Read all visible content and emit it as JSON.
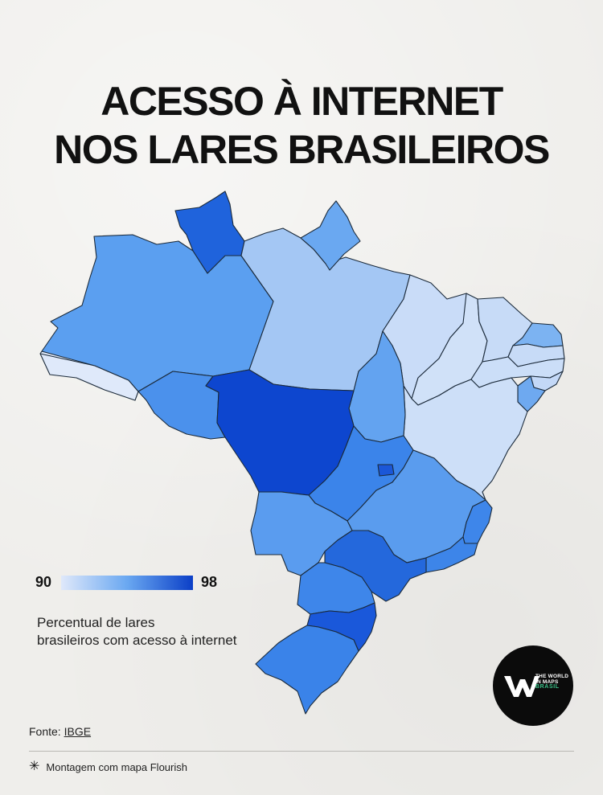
{
  "title": {
    "line1": "ACESSO À INTERNET",
    "line2": "NOS LARES BRASILEIROS"
  },
  "legend": {
    "min": "90",
    "max": "98",
    "color_low": "#dfe8fa",
    "color_high": "#0b3fc7",
    "caption_line1": "Percentual de lares",
    "caption_line2": "brasileiros com acesso à internet"
  },
  "source": {
    "label": "Fonte:",
    "name": "IBGE"
  },
  "footer": {
    "text": "Montagem com mapa Flourish",
    "icon": "asterisk-icon"
  },
  "logo": {
    "line1": "THE WORLD",
    "line2": "IN MAPS",
    "line3": "BRASIL"
  },
  "map": {
    "region": "Brazil",
    "states": {
      "AC": {
        "fill": "#dfe9fa"
      },
      "AM": {
        "fill": "#5b9ff0"
      },
      "RR": {
        "fill": "#1f63dc"
      },
      "PA": {
        "fill": "#a4c7f4"
      },
      "AP": {
        "fill": "#6aa8f1"
      },
      "MA": {
        "fill": "#c9dcf8"
      },
      "PI": {
        "fill": "#d0e1f8"
      },
      "CE": {
        "fill": "#c7dbf7"
      },
      "RN": {
        "fill": "#7cb3f2"
      },
      "PB": {
        "fill": "#c7dbf7"
      },
      "PE": {
        "fill": "#cbdef8"
      },
      "AL": {
        "fill": "#c3d8f7"
      },
      "SE": {
        "fill": "#6ea9f0"
      },
      "BA": {
        "fill": "#cddff8"
      },
      "TO": {
        "fill": "#63a3f0"
      },
      "RO": {
        "fill": "#4b91ec"
      },
      "MT": {
        "fill": "#0d46cf"
      },
      "GO": {
        "fill": "#3b84ea"
      },
      "DF": {
        "fill": "#1b57d8"
      },
      "MG": {
        "fill": "#5a9cee"
      },
      "ES": {
        "fill": "#3e86ea"
      },
      "RJ": {
        "fill": "#3d85e9"
      },
      "MS": {
        "fill": "#5a9cef"
      },
      "SP": {
        "fill": "#2468dc"
      },
      "PR": {
        "fill": "#3e86ea"
      },
      "SC": {
        "fill": "#1a58da"
      },
      "RS": {
        "fill": "#3a83e9"
      }
    }
  }
}
